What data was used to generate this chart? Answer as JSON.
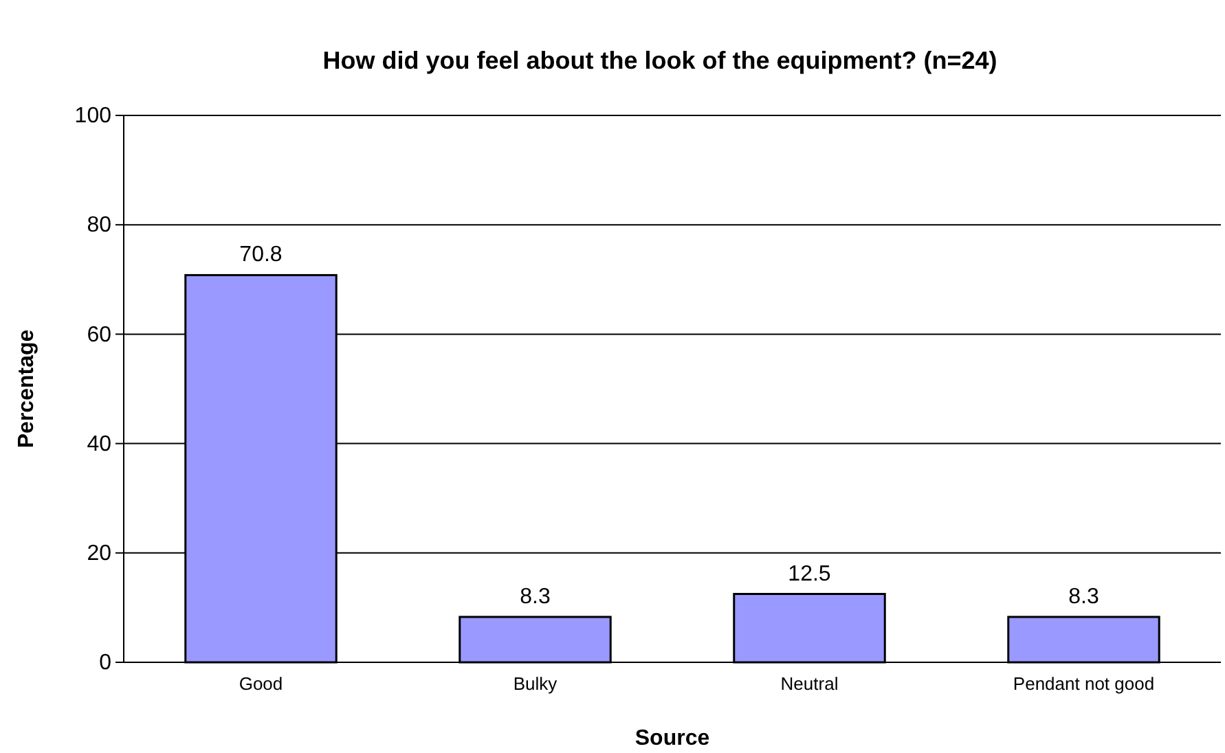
{
  "chart_data": {
    "type": "bar",
    "title": "How did you feel about the look of the equipment? (n=24)",
    "xlabel": "Source",
    "ylabel": "Percentage",
    "categories": [
      "Good",
      "Bulky",
      "Neutral",
      "Pendant not good"
    ],
    "values": [
      70.8,
      8.3,
      12.5,
      8.3
    ],
    "color": "#9999ff",
    "ylim": [
      0,
      100
    ],
    "yticks": [
      0,
      20,
      40,
      60,
      80,
      100
    ],
    "grid": "y",
    "data_labels": true
  }
}
